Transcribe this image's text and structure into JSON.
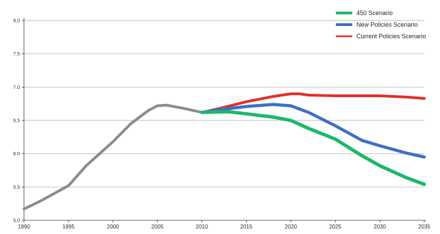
{
  "chart_data": {
    "type": "line",
    "title": "",
    "xlabel": "",
    "ylabel": "",
    "xlim": [
      1990,
      2035
    ],
    "ylim": [
      5.0,
      8.0
    ],
    "x_ticks": [
      "1990",
      "1995",
      "2000",
      "2005",
      "2010",
      "2015",
      "2020",
      "2025",
      "2030",
      "2035"
    ],
    "y_ticks": [
      "5.0",
      "5.5",
      "6.0",
      "6.5",
      "7.0",
      "7.5",
      "8.0"
    ],
    "grid": "horizontal",
    "legend_position": "top-right",
    "history": {
      "color": "#8c8c8c",
      "x": [
        1990,
        1992,
        1995,
        1997,
        2000,
        2002,
        2004,
        2005,
        2006,
        2008,
        2010
      ],
      "y": [
        5.17,
        5.3,
        5.52,
        5.82,
        6.18,
        6.45,
        6.65,
        6.72,
        6.73,
        6.68,
        6.62
      ]
    },
    "series": [
      {
        "name": "Current Policies Scenario",
        "color": "#e0302a",
        "x": [
          2010,
          2012,
          2015,
          2018,
          2020,
          2021,
          2022,
          2025,
          2030,
          2033,
          2035
        ],
        "y": [
          6.62,
          6.68,
          6.78,
          6.86,
          6.9,
          6.9,
          6.88,
          6.87,
          6.87,
          6.85,
          6.83
        ]
      },
      {
        "name": "New Policies Scenario",
        "color": "#3f6fc6",
        "x": [
          2010,
          2012,
          2015,
          2017,
          2018,
          2020,
          2022,
          2025,
          2028,
          2030,
          2033,
          2035
        ],
        "y": [
          6.62,
          6.66,
          6.71,
          6.73,
          6.74,
          6.72,
          6.62,
          6.42,
          6.2,
          6.12,
          6.01,
          5.95
        ]
      },
      {
        "name": "450 Scenario",
        "color": "#1db86a",
        "x": [
          2010,
          2013,
          2015,
          2018,
          2020,
          2022,
          2025,
          2028,
          2030,
          2033,
          2035
        ],
        "y": [
          6.62,
          6.63,
          6.6,
          6.55,
          6.5,
          6.38,
          6.22,
          5.97,
          5.82,
          5.64,
          5.54
        ]
      }
    ],
    "legend": [
      "450 Scenario",
      "New Policies Scenario",
      "Current Policies Scenario"
    ]
  }
}
